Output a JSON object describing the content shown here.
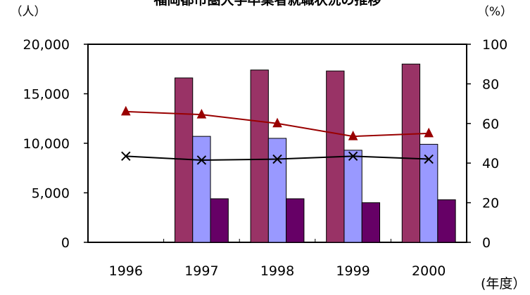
{
  "chart_data": {
    "type": "bar",
    "title": "福岡都市圏大学卒業者就職状況の推移",
    "left_unit": "（人）",
    "right_unit": "（%）",
    "x_unit": "(年度）",
    "categories": [
      "1996",
      "1997",
      "1998",
      "1999",
      "2000"
    ],
    "y_left": {
      "min": 0,
      "max": 20000,
      "ticks": [
        "0",
        "5,000",
        "10,000",
        "15,000",
        "20,000"
      ]
    },
    "y_right": {
      "min": 0,
      "max": 100,
      "ticks": [
        "0",
        "20",
        "40",
        "60",
        "80",
        "100"
      ]
    },
    "grid": false,
    "bars": [
      {
        "color": "#993366",
        "values": [
          null,
          16600,
          17400,
          17300,
          18000
        ]
      },
      {
        "color": "#9999ff",
        "values": [
          null,
          10700,
          10500,
          9300,
          9900
        ]
      },
      {
        "color": "#660066",
        "values": [
          null,
          4400,
          4400,
          4000,
          4300
        ]
      }
    ],
    "lines": [
      {
        "color": "#990000",
        "marker": "triangle",
        "values": [
          66,
          64.5,
          60,
          53.5,
          55
        ]
      },
      {
        "color": "#000000",
        "marker": "x",
        "values": [
          43.5,
          41.5,
          42,
          43.5,
          42
        ]
      }
    ]
  }
}
